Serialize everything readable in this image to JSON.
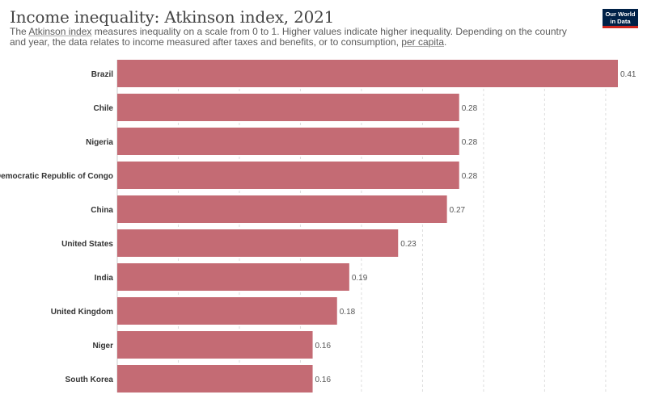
{
  "header": {
    "title": "Income inequality: Atkinson index, 2021",
    "subtitle_parts": [
      "The ",
      "Atkinson index",
      " measures inequality on a scale from 0 to 1. Higher values indicate higher inequality. Depending on the country and year, the data relates to income measured after taxes and benefits, or to consumption, ",
      "per capita",
      "."
    ],
    "logo_line1": "Our World",
    "logo_line2": "in Data"
  },
  "colors": {
    "bar": "#c46b74",
    "grid": "#dddddd",
    "label": "#333333",
    "value": "#555555",
    "logo_bg": "#002147",
    "logo_accent": "#ce261e"
  },
  "chart_data": {
    "type": "bar",
    "orientation": "horizontal",
    "categories": [
      "Brazil",
      "Chile",
      "Nigeria",
      "Democratic Republic of Congo",
      "China",
      "United States",
      "India",
      "United Kingdom",
      "Niger",
      "South Korea"
    ],
    "values": [
      0.41,
      0.28,
      0.28,
      0.28,
      0.27,
      0.23,
      0.19,
      0.18,
      0.16,
      0.16
    ],
    "value_labels": [
      "0.41",
      "0.28",
      "0.28",
      "0.28",
      "0.27",
      "0.23",
      "0.19",
      "0.18",
      "0.16",
      "0.16"
    ],
    "xlim": [
      0,
      0.41
    ],
    "grid_ticks": [
      0.05,
      0.1,
      0.15,
      0.2,
      0.25,
      0.3,
      0.35,
      0.4
    ],
    "grid": true,
    "title": "Income inequality: Atkinson index, 2021"
  }
}
